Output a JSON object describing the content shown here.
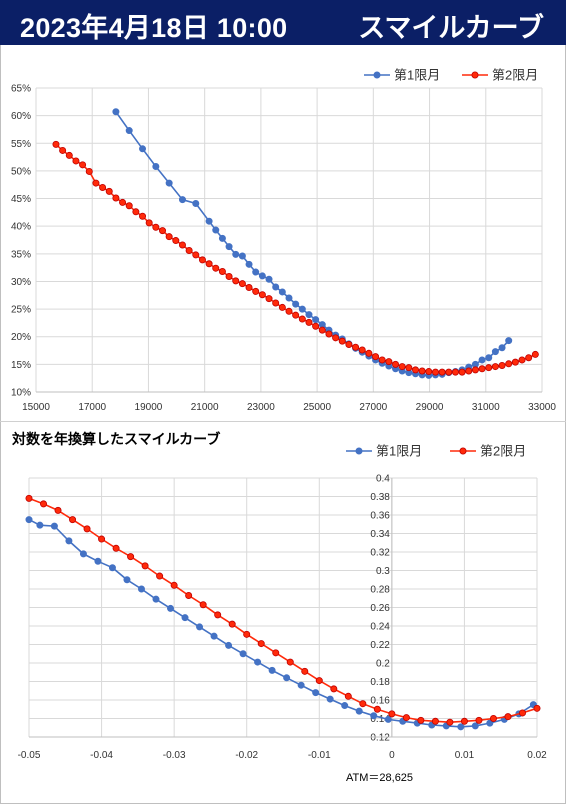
{
  "header": {
    "date": "2023年4月18日 10:00",
    "title": "スマイルカーブ"
  },
  "colors": {
    "series1": "#4472c4",
    "series2": "#ff2a0a",
    "series2_edge": "#c00000",
    "header_bg": "#0b1f66"
  },
  "chart_data": [
    {
      "type": "line",
      "title": "",
      "legend_position": "top-right",
      "grid": true,
      "xlim": [
        15000,
        34000
      ],
      "ylim": [
        0.1,
        0.65
      ],
      "x_ticks": [
        "15000",
        "17000",
        "19000",
        "21000",
        "23000",
        "25000",
        "27000",
        "29000",
        "31000",
        "33000"
      ],
      "y_ticks": [
        "10%",
        "15%",
        "20%",
        "25%",
        "30%",
        "35%",
        "40%",
        "45%",
        "50%",
        "55%",
        "60%",
        "65%"
      ],
      "series": [
        {
          "name": "第1限月",
          "x": [
            18000,
            18500,
            19000,
            19500,
            20000,
            20500,
            21000,
            21500,
            21750,
            22000,
            22250,
            22500,
            22750,
            23000,
            23250,
            23500,
            23750,
            24000,
            24250,
            24500,
            24750,
            25000,
            25250,
            25500,
            25750,
            26000,
            26250,
            26500,
            26750,
            27000,
            27250,
            27500,
            27750,
            28000,
            28250,
            28500,
            28750,
            29000,
            29250,
            29500,
            29750,
            30000,
            30250,
            30500,
            30750,
            31000,
            31250,
            31500,
            31750,
            32000,
            32250,
            32500,
            32750
          ],
          "y": [
            0.607,
            0.573,
            0.54,
            0.508,
            0.478,
            0.448,
            0.441,
            0.409,
            0.393,
            0.378,
            0.363,
            0.349,
            0.346,
            0.331,
            0.317,
            0.31,
            0.304,
            0.29,
            0.281,
            0.27,
            0.259,
            0.25,
            0.24,
            0.231,
            0.222,
            0.212,
            0.203,
            0.196,
            0.187,
            0.179,
            0.172,
            0.165,
            0.158,
            0.152,
            0.147,
            0.142,
            0.138,
            0.135,
            0.133,
            0.131,
            0.13,
            0.131,
            0.132,
            0.135,
            0.137,
            0.14,
            0.145,
            0.15,
            0.158,
            0.162,
            0.173,
            0.18,
            0.193
          ]
        },
        {
          "name": "第2限月",
          "x": [
            15750,
            16000,
            16250,
            16500,
            16750,
            17000,
            17250,
            17500,
            17750,
            18000,
            18250,
            18500,
            18750,
            19000,
            19250,
            19500,
            19750,
            20000,
            20250,
            20500,
            20750,
            21000,
            21250,
            21500,
            21750,
            22000,
            22250,
            22500,
            22750,
            23000,
            23250,
            23500,
            23750,
            24000,
            24250,
            24500,
            24750,
            25000,
            25250,
            25500,
            25750,
            26000,
            26250,
            26500,
            26750,
            27000,
            27250,
            27500,
            27750,
            28000,
            28250,
            28500,
            28750,
            29000,
            29250,
            29500,
            29750,
            30000,
            30250,
            30500,
            30750,
            31000,
            31250,
            31500,
            31750,
            32000,
            32250,
            32500,
            32750,
            33000,
            33250,
            33500,
            33750
          ],
          "y": [
            0.548,
            0.537,
            0.528,
            0.518,
            0.511,
            0.499,
            0.478,
            0.47,
            0.463,
            0.451,
            0.443,
            0.437,
            0.426,
            0.418,
            0.406,
            0.398,
            0.392,
            0.381,
            0.374,
            0.366,
            0.356,
            0.348,
            0.339,
            0.332,
            0.324,
            0.318,
            0.309,
            0.301,
            0.296,
            0.289,
            0.282,
            0.276,
            0.269,
            0.261,
            0.253,
            0.246,
            0.239,
            0.232,
            0.226,
            0.219,
            0.212,
            0.205,
            0.198,
            0.192,
            0.186,
            0.181,
            0.176,
            0.17,
            0.164,
            0.158,
            0.155,
            0.15,
            0.146,
            0.144,
            0.14,
            0.138,
            0.137,
            0.136,
            0.136,
            0.136,
            0.136,
            0.136,
            0.138,
            0.14,
            0.142,
            0.144,
            0.146,
            0.148,
            0.151,
            0.154,
            0.158,
            0.162,
            0.168
          ]
        }
      ]
    },
    {
      "type": "line",
      "title": "対数を年換算したスマイルカーブ",
      "legend_position": "top-right",
      "grid": true,
      "xlim": [
        -0.05,
        0.02
      ],
      "ylim": [
        0.12,
        0.4
      ],
      "x_ticks": [
        "-0.05",
        "-0.04",
        "-0.03",
        "-0.02",
        "-0.01",
        "0",
        "0.01",
        "0.02"
      ],
      "y_ticks": [
        "0.12",
        "0.14",
        "0.16",
        "0.18",
        "0.2",
        "0.22",
        "0.24",
        "0.26",
        "0.28",
        "0.3",
        "0.32",
        "0.34",
        "0.36",
        "0.38",
        "0.4"
      ],
      "annotation": "ATM＝28,625",
      "series": [
        {
          "name": "第1限月",
          "x": [
            -0.05,
            -0.0485,
            -0.0465,
            -0.0445,
            -0.0425,
            -0.0405,
            -0.0385,
            -0.0365,
            -0.0345,
            -0.0325,
            -0.0305,
            -0.0285,
            -0.0265,
            -0.0245,
            -0.0225,
            -0.0205,
            -0.0185,
            -0.0165,
            -0.0145,
            -0.0125,
            -0.0105,
            -0.0085,
            -0.0065,
            -0.0045,
            -0.0025,
            -0.0005,
            0.0015,
            0.0035,
            0.0055,
            0.0075,
            0.0095,
            0.0115,
            0.0135,
            0.0155,
            0.0175,
            0.0195
          ],
          "y": [
            0.355,
            0.349,
            0.348,
            0.332,
            0.318,
            0.31,
            0.303,
            0.29,
            0.28,
            0.269,
            0.259,
            0.249,
            0.239,
            0.229,
            0.219,
            0.21,
            0.201,
            0.192,
            0.184,
            0.176,
            0.168,
            0.161,
            0.154,
            0.148,
            0.143,
            0.139,
            0.137,
            0.135,
            0.133,
            0.132,
            0.131,
            0.132,
            0.135,
            0.139,
            0.145,
            0.155
          ]
        },
        {
          "name": "第2限月",
          "x": [
            -0.05,
            -0.048,
            -0.046,
            -0.044,
            -0.042,
            -0.04,
            -0.038,
            -0.036,
            -0.034,
            -0.032,
            -0.03,
            -0.028,
            -0.026,
            -0.024,
            -0.022,
            -0.02,
            -0.018,
            -0.016,
            -0.014,
            -0.012,
            -0.01,
            -0.008,
            -0.006,
            -0.004,
            -0.002,
            0.0,
            0.002,
            0.004,
            0.006,
            0.008,
            0.01,
            0.012,
            0.014,
            0.016,
            0.018,
            0.02
          ],
          "y": [
            0.378,
            0.372,
            0.365,
            0.355,
            0.345,
            0.334,
            0.324,
            0.315,
            0.305,
            0.294,
            0.284,
            0.273,
            0.263,
            0.252,
            0.242,
            0.231,
            0.221,
            0.211,
            0.201,
            0.191,
            0.181,
            0.172,
            0.164,
            0.156,
            0.15,
            0.145,
            0.141,
            0.138,
            0.137,
            0.136,
            0.137,
            0.138,
            0.14,
            0.142,
            0.146,
            0.151
          ]
        }
      ]
    }
  ]
}
